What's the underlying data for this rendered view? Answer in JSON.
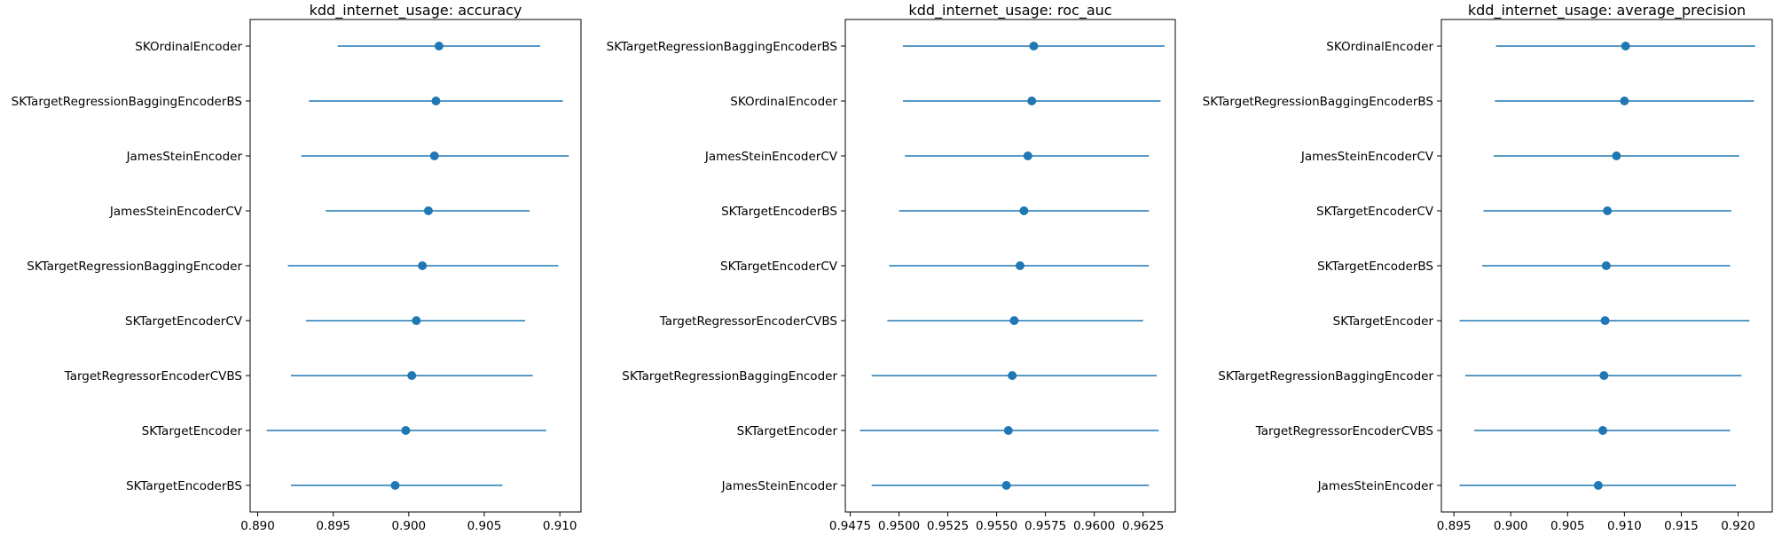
{
  "chart_data": [
    {
      "type": "errorbar",
      "title": "kdd_internet_usage: accuracy",
      "xlabel": "",
      "ylabel": "",
      "xlim": [
        0.8895,
        0.9114
      ],
      "xticks": [
        "0.890",
        "0.895",
        "0.900",
        "0.905",
        "0.910"
      ],
      "xtick_values": [
        0.89,
        0.895,
        0.9,
        0.905,
        0.91
      ],
      "color": "#1f77b4",
      "categories": [
        "SKOrdinalEncoder",
        "SKTargetRegressionBaggingEncoderBS",
        "JamesSteinEncoder",
        "JamesSteinEncoderCV",
        "SKTargetRegressionBaggingEncoder",
        "SKTargetEncoderCV",
        "TargetRegressorEncoderCVBS",
        "SKTargetEncoder",
        "SKTargetEncoderBS"
      ],
      "values": [
        0.902,
        0.9018,
        0.9017,
        0.9013,
        0.9009,
        0.9005,
        0.9002,
        0.8998,
        0.8991
      ],
      "lower": [
        0.8953,
        0.8934,
        0.8929,
        0.8945,
        0.892,
        0.8932,
        0.8922,
        0.8906,
        0.8922
      ],
      "upper": [
        0.9087,
        0.9102,
        0.9106,
        0.908,
        0.9099,
        0.9077,
        0.9082,
        0.9091,
        0.9062
      ]
    },
    {
      "type": "errorbar",
      "title": "kdd_internet_usage: roc_auc",
      "xlabel": "",
      "ylabel": "",
      "xlim": [
        0.94725,
        0.96415
      ],
      "xticks": [
        "0.9475",
        "0.9500",
        "0.9525",
        "0.9550",
        "0.9575",
        "0.9600",
        "0.9625"
      ],
      "xtick_values": [
        0.9475,
        0.95,
        0.9525,
        0.955,
        0.9575,
        0.96,
        0.9625
      ],
      "color": "#1f77b4",
      "categories": [
        "SKTargetRegressionBaggingEncoderBS",
        "SKOrdinalEncoder",
        "JamesSteinEncoderCV",
        "SKTargetEncoderBS",
        "SKTargetEncoderCV",
        "TargetRegressorEncoderCVBS",
        "SKTargetRegressionBaggingEncoder",
        "SKTargetEncoder",
        "JamesSteinEncoder"
      ],
      "values": [
        0.9569,
        0.9568,
        0.9566,
        0.9564,
        0.9562,
        0.9559,
        0.9558,
        0.9556,
        0.9555
      ],
      "lower": [
        0.9502,
        0.9502,
        0.9503,
        0.95,
        0.9495,
        0.9494,
        0.9486,
        0.948,
        0.9486
      ],
      "upper": [
        0.9636,
        0.9634,
        0.9628,
        0.9628,
        0.9628,
        0.9625,
        0.9632,
        0.9633,
        0.9628
      ]
    },
    {
      "type": "errorbar",
      "title": "kdd_internet_usage: average_precision",
      "xlabel": "",
      "ylabel": "",
      "xlim": [
        0.8939,
        0.923
      ],
      "xticks": [
        "0.895",
        "0.900",
        "0.905",
        "0.910",
        "0.915",
        "0.920"
      ],
      "xtick_values": [
        0.895,
        0.9,
        0.905,
        0.91,
        0.915,
        0.92
      ],
      "color": "#1f77b4",
      "categories": [
        "SKOrdinalEncoder",
        "SKTargetRegressionBaggingEncoderBS",
        "JamesSteinEncoderCV",
        "SKTargetEncoderCV",
        "SKTargetEncoderBS",
        "SKTargetEncoder",
        "SKTargetRegressionBaggingEncoder",
        "TargetRegressorEncoderCVBS",
        "JamesSteinEncoder"
      ],
      "values": [
        0.9101,
        0.91,
        0.9093,
        0.9085,
        0.9084,
        0.9083,
        0.9082,
        0.9081,
        0.9077
      ],
      "lower": [
        0.8987,
        0.8986,
        0.8985,
        0.8976,
        0.8975,
        0.8955,
        0.896,
        0.8968,
        0.8955
      ],
      "upper": [
        0.9215,
        0.9214,
        0.9201,
        0.9194,
        0.9193,
        0.921,
        0.9203,
        0.9193,
        0.9198
      ]
    }
  ]
}
